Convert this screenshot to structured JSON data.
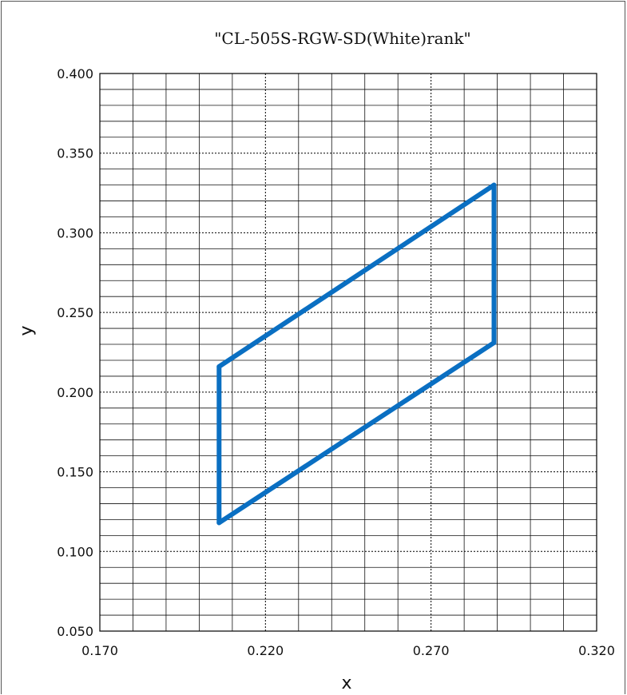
{
  "chart_data": {
    "type": "line",
    "title": "\"CL-505S-RGW-SD(White)rank\"",
    "xlabel": "x",
    "ylabel": "y",
    "xlim": [
      0.17,
      0.32
    ],
    "ylim": [
      0.05,
      0.4
    ],
    "x_ticks": [
      "0.170",
      "0.220",
      "0.270",
      "0.320"
    ],
    "y_ticks": [
      "0.400",
      "0.350",
      "0.300",
      "0.250",
      "0.200",
      "0.150",
      "0.100",
      "0.050"
    ],
    "x_major_grid": [
      0.22,
      0.27
    ],
    "y_major_grid": [
      0.1,
      0.15,
      0.2,
      0.25,
      0.3,
      0.35
    ],
    "grid": true,
    "minor_grid": {
      "x_step": 0.01,
      "y_step": 0.01
    },
    "series": [
      {
        "color": "#0a6fc2",
        "closed": true,
        "points": [
          {
            "x": 0.206,
            "y": 0.118
          },
          {
            "x": 0.206,
            "y": 0.216
          },
          {
            "x": 0.289,
            "y": 0.33
          },
          {
            "x": 0.289,
            "y": 0.231
          }
        ]
      }
    ]
  }
}
